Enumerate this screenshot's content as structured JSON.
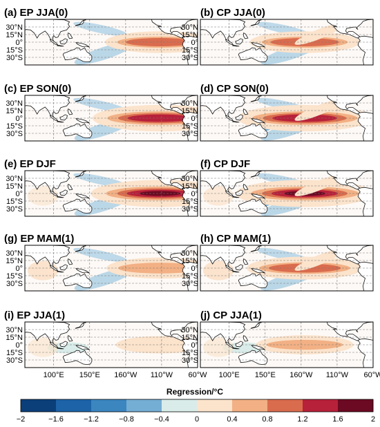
{
  "panels": [
    {
      "title": "(a) EP JJA(0)",
      "pattern": "ep",
      "strength": 0.55,
      "warm_pool": 0.05
    },
    {
      "title": "(b) CP JJA(0)",
      "pattern": "cp",
      "strength": 0.55,
      "warm_pool": 0.05
    },
    {
      "title": "(c) EP SON(0)",
      "pattern": "ep",
      "strength": 0.95,
      "warm_pool": 0.1
    },
    {
      "title": "(d) CP SON(0)",
      "pattern": "cp",
      "strength": 0.95,
      "warm_pool": 0.1
    },
    {
      "title": "(e) EP DJF",
      "pattern": "ep",
      "strength": 1.0,
      "warm_pool": 0.3
    },
    {
      "title": "(f) CP DJF",
      "pattern": "cp",
      "strength": 1.0,
      "warm_pool": 0.35
    },
    {
      "title": "(g) EP MAM(1)",
      "pattern": "ep",
      "strength": 0.5,
      "warm_pool": 0.45
    },
    {
      "title": "(h) CP MAM(1)",
      "pattern": "cp",
      "strength": 0.65,
      "warm_pool": 0.45
    },
    {
      "title": "(i) EP JJA(1)",
      "pattern": "ep",
      "strength": 0.2,
      "warm_pool": 0.3
    },
    {
      "title": "(j) CP JJA(1)",
      "pattern": "cp",
      "strength": 0.35,
      "warm_pool": 0.3
    }
  ],
  "lat_labels": [
    "30°N",
    "15°N",
    "0°",
    "15°S",
    "30°S"
  ],
  "lon_labels": [
    "100°E",
    "150°E",
    "160°W",
    "110°W",
    "60°W"
  ],
  "colorbar": {
    "label": "Regression/°C",
    "ticks": [
      "−2",
      "−1.6",
      "−1.2",
      "−0.8",
      "−0.4",
      "0",
      "0.4",
      "0.8",
      "1.2",
      "1.6",
      "2"
    ],
    "colors": [
      "#0b3f7a",
      "#1d63a8",
      "#3c86c0",
      "#75aed4",
      "#b3d3e6",
      "#d9ece9",
      "#fbe3cc",
      "#f2b084",
      "#da6c4e",
      "#b8213a",
      "#6b0a22"
    ]
  }
}
